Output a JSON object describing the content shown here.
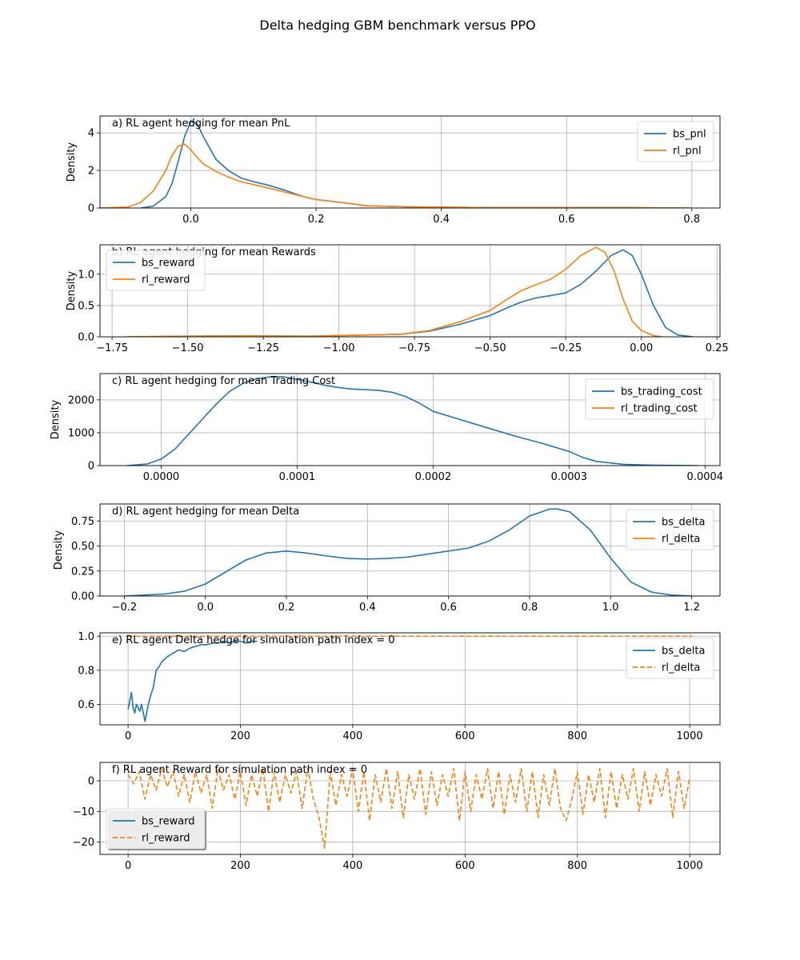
{
  "figure": {
    "title": "Delta hedging GBM benchmark versus PPO"
  },
  "colors": {
    "series1": "#1f77b4",
    "series2": "#ff7f0e",
    "grid": "#b0b0b0"
  },
  "chart_data": [
    {
      "id": "a",
      "type": "line",
      "title": "a) RL agent hedging for mean PnL",
      "ylabel": "Density",
      "xlabel": "",
      "xlim": [
        -0.145,
        0.845
      ],
      "ylim": [
        0,
        4.9
      ],
      "xticks": [
        0.0,
        0.2,
        0.4,
        0.6,
        0.8
      ],
      "xtick_labels": [
        "0.0",
        "0.2",
        "0.4",
        "0.6",
        "0.8"
      ],
      "yticks": [
        0,
        2,
        4
      ],
      "ytick_labels": [
        "0",
        "2",
        "4"
      ],
      "grid": true,
      "legend": "upper right",
      "series": [
        {
          "name": "bs_pnl",
          "color": "#1f77b4",
          "dash": "solid",
          "x": [
            -0.08,
            -0.06,
            -0.04,
            -0.03,
            -0.02,
            -0.01,
            0.0,
            0.01,
            0.02,
            0.04,
            0.06,
            0.08,
            0.1,
            0.12,
            0.15,
            0.18,
            0.2,
            0.24,
            0.28,
            0.35,
            0.45,
            0.6,
            0.7,
            0.79
          ],
          "y": [
            0.0,
            0.1,
            0.6,
            1.3,
            2.5,
            3.8,
            4.6,
            4.5,
            3.8,
            2.6,
            2.0,
            1.6,
            1.4,
            1.25,
            0.95,
            0.6,
            0.45,
            0.3,
            0.12,
            0.06,
            0.03,
            0.02,
            0.02,
            0.0
          ]
        },
        {
          "name": "rl_pnl",
          "color": "#ff7f0e",
          "dash": "solid",
          "x": [
            -0.145,
            -0.1,
            -0.08,
            -0.06,
            -0.04,
            -0.03,
            -0.02,
            -0.01,
            0.0,
            0.01,
            0.02,
            0.04,
            0.06,
            0.08,
            0.1,
            0.12,
            0.15,
            0.18,
            0.2,
            0.24,
            0.28,
            0.35,
            0.45,
            0.6,
            0.7,
            0.8
          ],
          "y": [
            0.0,
            0.05,
            0.3,
            0.9,
            2.0,
            2.8,
            3.3,
            3.4,
            3.1,
            2.7,
            2.35,
            1.95,
            1.65,
            1.4,
            1.25,
            1.1,
            0.85,
            0.6,
            0.45,
            0.3,
            0.12,
            0.06,
            0.03,
            0.02,
            0.02,
            0.0
          ]
        }
      ]
    },
    {
      "id": "b",
      "type": "line",
      "title": "b) RL agent hedging for mean Rewards",
      "ylabel": "Density",
      "xlabel": "",
      "xlim": [
        -1.79,
        0.26
      ],
      "ylim": [
        0,
        1.47
      ],
      "xticks": [
        -1.75,
        -1.5,
        -1.25,
        -1.0,
        -0.75,
        -0.5,
        -0.25,
        0.0,
        0.25
      ],
      "xtick_labels": [
        "−1.75",
        "−1.50",
        "−1.25",
        "−1.00",
        "−0.75",
        "−0.50",
        "−0.25",
        "0.00",
        "0.25"
      ],
      "yticks": [
        0.0,
        0.5,
        1.0
      ],
      "ytick_labels": [
        "0.0",
        "0.5",
        "1.0"
      ],
      "grid": true,
      "legend": "upper left",
      "series": [
        {
          "name": "bs_reward",
          "color": "#1f77b4",
          "dash": "solid",
          "x": [
            -1.7,
            -1.5,
            -1.3,
            -1.1,
            -1.0,
            -0.8,
            -0.7,
            -0.6,
            -0.5,
            -0.45,
            -0.4,
            -0.35,
            -0.3,
            -0.25,
            -0.2,
            -0.15,
            -0.1,
            -0.06,
            -0.03,
            0.0,
            0.04,
            0.08,
            0.12,
            0.17
          ],
          "y": [
            0.0,
            0.01,
            0.015,
            0.01,
            0.02,
            0.04,
            0.09,
            0.2,
            0.34,
            0.45,
            0.55,
            0.62,
            0.66,
            0.7,
            0.84,
            1.05,
            1.3,
            1.39,
            1.3,
            1.0,
            0.5,
            0.15,
            0.03,
            0.0
          ]
        },
        {
          "name": "rl_reward",
          "color": "#ff7f0e",
          "dash": "solid",
          "x": [
            -1.7,
            -1.5,
            -1.3,
            -1.1,
            -1.0,
            -0.8,
            -0.7,
            -0.6,
            -0.5,
            -0.45,
            -0.4,
            -0.35,
            -0.3,
            -0.25,
            -0.2,
            -0.15,
            -0.12,
            -0.09,
            -0.06,
            -0.03,
            0.0,
            0.04,
            0.07
          ],
          "y": [
            0.0,
            0.01,
            0.015,
            0.01,
            0.02,
            0.04,
            0.1,
            0.24,
            0.42,
            0.58,
            0.73,
            0.83,
            0.92,
            1.08,
            1.3,
            1.43,
            1.35,
            1.05,
            0.6,
            0.25,
            0.1,
            0.02,
            0.0
          ]
        }
      ]
    },
    {
      "id": "c",
      "type": "line",
      "title": "c) RL agent hedging for mean Trading Cost",
      "ylabel": "Density",
      "xlabel": "",
      "xlim": [
        -4.5e-05,
        0.000411
      ],
      "ylim": [
        0,
        2800
      ],
      "xticks": [
        0.0,
        0.0001,
        0.0002,
        0.0003,
        0.0004
      ],
      "xtick_labels": [
        "0.0000",
        "0.0001",
        "0.0002",
        "0.0003",
        "0.0004"
      ],
      "yticks": [
        0,
        1000,
        2000
      ],
      "ytick_labels": [
        "0",
        "1000",
        "2000"
      ],
      "grid": true,
      "legend": "upper right",
      "series": [
        {
          "name": "bs_trading_cost",
          "color": "#1f77b4",
          "dash": "solid",
          "x": [
            -2.5e-05,
            -1e-05,
            0.0,
            1e-05,
            2e-05,
            3e-05,
            4e-05,
            5e-05,
            6e-05,
            7e-05,
            8e-05,
            9e-05,
            0.0001,
            0.00011,
            0.00012,
            0.00013,
            0.00014,
            0.00015,
            0.00016,
            0.00017,
            0.00018,
            0.00019,
            0.0002,
            0.00022,
            0.00024,
            0.00026,
            0.00028,
            0.0003,
            0.00031,
            0.00032,
            0.00034,
            0.00036,
            0.000395
          ],
          "y": [
            0,
            50,
            200,
            500,
            950,
            1400,
            1850,
            2250,
            2500,
            2640,
            2700,
            2700,
            2630,
            2540,
            2450,
            2380,
            2330,
            2310,
            2290,
            2230,
            2100,
            1900,
            1650,
            1400,
            1150,
            900,
            680,
            430,
            250,
            130,
            40,
            15,
            0
          ]
        },
        {
          "name": "rl_trading_cost",
          "color": "#ff7f0e",
          "dash": "solid",
          "x": [],
          "y": []
        }
      ]
    },
    {
      "id": "d",
      "type": "line",
      "title": "d) RL agent hedging for mean Delta",
      "ylabel": "Density",
      "xlabel": "",
      "xlim": [
        -0.26,
        1.27
      ],
      "ylim": [
        0,
        0.92
      ],
      "xticks": [
        -0.2,
        0.0,
        0.2,
        0.4,
        0.6,
        0.8,
        1.0,
        1.2
      ],
      "xtick_labels": [
        "−0.2",
        "0.0",
        "0.2",
        "0.4",
        "0.6",
        "0.8",
        "1.0",
        "1.2"
      ],
      "yticks": [
        0.0,
        0.25,
        0.5,
        0.75
      ],
      "ytick_labels": [
        "0.00",
        "0.25",
        "0.50",
        "0.75"
      ],
      "grid": true,
      "legend": "upper right",
      "series": [
        {
          "name": "bs_delta",
          "color": "#1f77b4",
          "dash": "solid",
          "x": [
            -0.2,
            -0.1,
            -0.05,
            0.0,
            0.05,
            0.1,
            0.15,
            0.2,
            0.25,
            0.3,
            0.35,
            0.4,
            0.45,
            0.5,
            0.55,
            0.6,
            0.65,
            0.7,
            0.75,
            0.8,
            0.85,
            0.87,
            0.9,
            0.95,
            1.0,
            1.05,
            1.1,
            1.15,
            1.2
          ],
          "y": [
            0.0,
            0.02,
            0.05,
            0.12,
            0.24,
            0.36,
            0.43,
            0.45,
            0.43,
            0.4,
            0.375,
            0.37,
            0.375,
            0.39,
            0.42,
            0.45,
            0.48,
            0.55,
            0.66,
            0.8,
            0.87,
            0.87,
            0.84,
            0.66,
            0.38,
            0.14,
            0.04,
            0.01,
            0.0
          ]
        },
        {
          "name": "rl_delta",
          "color": "#ff7f0e",
          "dash": "solid",
          "x": [],
          "y": []
        }
      ]
    },
    {
      "id": "e",
      "type": "line",
      "title": "e) RL agent Delta hedge for simulation path index = 0",
      "ylabel": "",
      "xlabel": "",
      "xlim": [
        -50,
        1054
      ],
      "ylim": [
        0.48,
        1.02
      ],
      "xticks": [
        0,
        200,
        400,
        600,
        800,
        1000
      ],
      "xtick_labels": [
        "0",
        "200",
        "400",
        "600",
        "800",
        "1000"
      ],
      "yticks": [
        0.6,
        0.8,
        1.0
      ],
      "ytick_labels": [
        "0.6",
        "0.8",
        "1.0"
      ],
      "grid": true,
      "legend": "upper right",
      "series": [
        {
          "name": "bs_delta",
          "color": "#1f77b4",
          "dash": "solid",
          "x": [
            0,
            3,
            6,
            9,
            12,
            15,
            18,
            21,
            24,
            27,
            30,
            33,
            36,
            40,
            45,
            50,
            55,
            60,
            70,
            80,
            90,
            100,
            110,
            120,
            130,
            140,
            150,
            160,
            170,
            180,
            190,
            200,
            210,
            220,
            230
          ],
          "y": [
            0.57,
            0.62,
            0.67,
            0.58,
            0.55,
            0.6,
            0.58,
            0.56,
            0.6,
            0.55,
            0.5,
            0.55,
            0.6,
            0.65,
            0.7,
            0.8,
            0.82,
            0.85,
            0.88,
            0.9,
            0.92,
            0.91,
            0.93,
            0.94,
            0.95,
            0.95,
            0.96,
            0.96,
            0.97,
            0.96,
            0.97,
            0.97,
            0.96,
            0.97,
            0.97
          ]
        },
        {
          "name": "rl_delta",
          "color": "#ff7f0e",
          "dash": "dashed",
          "x": [
            0,
            1005
          ],
          "y": [
            1.0,
            1.0
          ]
        }
      ]
    },
    {
      "id": "f",
      "type": "line",
      "title": "f) RL agent Reward for simulation path index = 0",
      "ylabel": "",
      "xlabel": "",
      "xlim": [
        -50,
        1054
      ],
      "ylim": [
        -24,
        6
      ],
      "xticks": [
        0,
        200,
        400,
        600,
        800,
        1000
      ],
      "xtick_labels": [
        "0",
        "200",
        "400",
        "600",
        "800",
        "1000"
      ],
      "yticks": [
        -20,
        -10,
        0
      ],
      "ytick_labels": [
        "−20",
        "−10",
        "0"
      ],
      "grid": true,
      "legend": "lower left",
      "series": [
        {
          "name": "bs_reward",
          "color": "#1f77b4",
          "dash": "solid",
          "x": [],
          "y": []
        },
        {
          "name": "rl_reward",
          "color": "#ff7f0e",
          "dash": "dashed",
          "x": [
            0,
            10,
            20,
            30,
            40,
            50,
            60,
            70,
            80,
            90,
            100,
            110,
            120,
            130,
            140,
            150,
            160,
            170,
            180,
            190,
            200,
            210,
            220,
            230,
            240,
            250,
            260,
            270,
            280,
            290,
            300,
            310,
            320,
            330,
            340,
            350,
            360,
            370,
            380,
            390,
            400,
            410,
            420,
            430,
            440,
            450,
            460,
            470,
            480,
            490,
            500,
            510,
            520,
            530,
            540,
            550,
            560,
            570,
            580,
            590,
            600,
            610,
            620,
            630,
            640,
            650,
            660,
            670,
            680,
            690,
            700,
            710,
            720,
            730,
            740,
            750,
            760,
            770,
            780,
            790,
            800,
            810,
            820,
            830,
            840,
            850,
            860,
            870,
            880,
            890,
            900,
            910,
            920,
            930,
            940,
            950,
            960,
            970,
            980,
            990,
            1000
          ],
          "y": [
            2,
            -1,
            3,
            -6,
            2,
            -3,
            4,
            -2,
            3,
            -5,
            2,
            -7,
            3,
            -4,
            2,
            -9,
            4,
            -3,
            2,
            -6,
            3,
            -8,
            2,
            -5,
            4,
            -10,
            3,
            -7,
            2,
            -4,
            3,
            -9,
            4,
            -6,
            -12,
            -22,
            3,
            -8,
            2,
            -5,
            4,
            -10,
            3,
            -13,
            2,
            -7,
            4,
            -9,
            3,
            -12,
            2,
            -6,
            4,
            -11,
            3,
            -8,
            2,
            -5,
            4,
            -13,
            3,
            -10,
            2,
            -6,
            4,
            -9,
            3,
            -11,
            2,
            -7,
            4,
            -10,
            3,
            -12,
            2,
            -8,
            4,
            -9,
            -13,
            -6,
            3,
            -11,
            2,
            -7,
            4,
            -12,
            3,
            -9,
            2,
            -6,
            4,
            -10,
            3,
            -8,
            2,
            -5,
            4,
            -12,
            3,
            -9,
            1
          ]
        }
      ]
    }
  ]
}
